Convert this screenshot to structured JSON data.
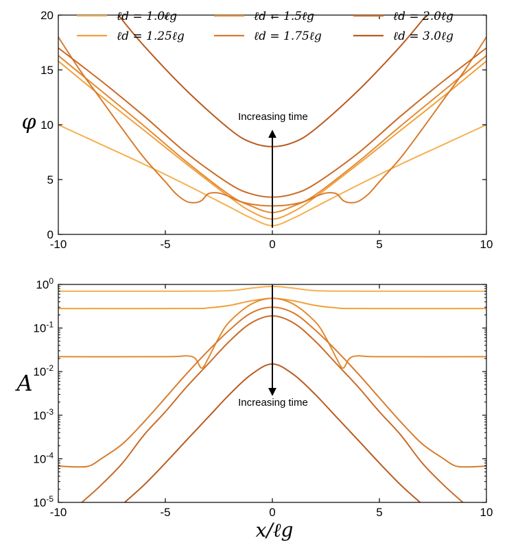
{
  "legend": {
    "entries": [
      {
        "label": "ℓd = 1.0ℓg",
        "color": "#f5b04f"
      },
      {
        "label": "ℓd = 1.25ℓg",
        "color": "#f0a03a"
      },
      {
        "label": "ℓd = 1.5ℓg",
        "color": "#e28a2f"
      },
      {
        "label": "ℓd = 1.75ℓg",
        "color": "#d77a2a"
      },
      {
        "label": "ℓd = 2.0ℓg",
        "color": "#c96a26"
      },
      {
        "label": "ℓd = 3.0ℓg",
        "color": "#b85a1e"
      }
    ]
  },
  "chart_data": [
    {
      "type": "line",
      "panel": "top",
      "ylabel": "φ",
      "xlabel": "",
      "xlim": [
        -10,
        10
      ],
      "ylim": [
        0,
        20
      ],
      "xticks": [
        -10,
        -5,
        0,
        5,
        10
      ],
      "xtick_labels": [
        "-10",
        "-5",
        "0",
        "5",
        "10"
      ],
      "yticks": [
        0,
        5,
        10,
        15,
        20
      ],
      "ytick_labels": [
        "0",
        "5",
        "10",
        "15",
        "20"
      ],
      "annotation": "Increasing time",
      "arrow": {
        "x": 0,
        "from": 0.6,
        "to": 9.4
      },
      "series": [
        {
          "name": "ℓd = 1.0ℓg",
          "color": "#f5b04f",
          "points": [
            [
              -10,
              10
            ],
            [
              -8,
              8.2
            ],
            [
              -6,
              6.4
            ],
            [
              -4,
              4.5
            ],
            [
              -2,
              2.5
            ],
            [
              -1,
              1.5
            ],
            [
              0,
              0.8
            ],
            [
              1,
              1.5
            ],
            [
              2,
              2.5
            ],
            [
              4,
              4.5
            ],
            [
              6,
              6.4
            ],
            [
              8,
              8.2
            ],
            [
              10,
              10
            ]
          ]
        },
        {
          "name": "ℓd = 1.25ℓg",
          "color": "#f0a03a",
          "points": [
            [
              -10,
              15.8
            ],
            [
              -8,
              12.6
            ],
            [
              -6,
              9.5
            ],
            [
              -4,
              6.4
            ],
            [
              -2,
              3.4
            ],
            [
              -1,
              2.1
            ],
            [
              0,
              1.4
            ],
            [
              1,
              2.1
            ],
            [
              2,
              3.4
            ],
            [
              4,
              6.4
            ],
            [
              6,
              9.5
            ],
            [
              8,
              12.6
            ],
            [
              10,
              15.8
            ]
          ]
        },
        {
          "name": "ℓd = 1.5ℓg",
          "color": "#e28a2f",
          "points": [
            [
              -10,
              16.3
            ],
            [
              -8,
              13.1
            ],
            [
              -6,
              9.9
            ],
            [
              -4,
              6.6
            ],
            [
              -2,
              3.6
            ],
            [
              -1,
              2.6
            ],
            [
              0,
              2.0
            ],
            [
              1,
              2.6
            ],
            [
              2,
              3.6
            ],
            [
              4,
              6.6
            ],
            [
              6,
              9.9
            ],
            [
              8,
              13.1
            ],
            [
              10,
              16.3
            ]
          ]
        },
        {
          "name": "ℓd = 1.75ℓg",
          "color": "#d77a2a",
          "points": [
            [
              -10,
              18
            ],
            [
              -9,
              15
            ],
            [
              -8,
              12.3
            ],
            [
              -7,
              9.6
            ],
            [
              -6,
              7
            ],
            [
              -5,
              4.8
            ],
            [
              -4.5,
              3.7
            ],
            [
              -4,
              3.0
            ],
            [
              -3.6,
              2.9
            ],
            [
              -3.3,
              3.1
            ],
            [
              -3,
              3.7
            ],
            [
              -2.6,
              3.8
            ],
            [
              -2.2,
              3.6
            ],
            [
              -1.5,
              3.0
            ],
            [
              -0.8,
              2.7
            ],
            [
              0,
              2.6
            ],
            [
              0.8,
              2.7
            ],
            [
              1.5,
              3.0
            ],
            [
              2.2,
              3.6
            ],
            [
              2.6,
              3.8
            ],
            [
              3,
              3.7
            ],
            [
              3.3,
              3.1
            ],
            [
              3.6,
              2.9
            ],
            [
              4,
              3.0
            ],
            [
              4.5,
              3.7
            ],
            [
              5,
              4.8
            ],
            [
              6,
              7
            ],
            [
              7,
              9.6
            ],
            [
              8,
              12.3
            ],
            [
              9,
              15
            ],
            [
              10,
              18
            ]
          ]
        },
        {
          "name": "ℓd = 2.0ℓg",
          "color": "#c96a26",
          "points": [
            [
              -10,
              17
            ],
            [
              -8,
              14
            ],
            [
              -6,
              10.8
            ],
            [
              -4,
              7.4
            ],
            [
              -2,
              4.6
            ],
            [
              -1,
              3.7
            ],
            [
              0,
              3.4
            ],
            [
              1,
              3.7
            ],
            [
              2,
              4.6
            ],
            [
              4,
              7.4
            ],
            [
              6,
              10.8
            ],
            [
              8,
              14
            ],
            [
              10,
              17
            ]
          ]
        },
        {
          "name": "ℓd = 3.0ℓg",
          "color": "#b85a1e",
          "points": [
            [
              -7.2,
              20
            ],
            [
              -6,
              17.2
            ],
            [
              -4,
              13.1
            ],
            [
              -2,
              9.6
            ],
            [
              -1,
              8.4
            ],
            [
              0,
              8.0
            ],
            [
              1,
              8.4
            ],
            [
              2,
              9.6
            ],
            [
              4,
              13.1
            ],
            [
              6,
              17.2
            ],
            [
              7.2,
              20
            ]
          ]
        }
      ]
    },
    {
      "type": "line",
      "panel": "bottom",
      "yscale": "log",
      "ylabel": "A",
      "xlabel": "x/ℓg",
      "xlim": [
        -10,
        10
      ],
      "ylim": [
        1e-05,
        1
      ],
      "xticks": [
        -10,
        -5,
        0,
        5,
        10
      ],
      "xtick_labels": [
        "-10",
        "-5",
        "0",
        "5",
        "10"
      ],
      "yticks": [
        1e-05,
        0.0001,
        0.001,
        0.01,
        0.1,
        1
      ],
      "ytick_labels": [
        {
          "base": "10",
          "exp": "-5"
        },
        {
          "base": "10",
          "exp": "-4"
        },
        {
          "base": "10",
          "exp": "-3"
        },
        {
          "base": "10",
          "exp": "-2"
        },
        {
          "base": "10",
          "exp": "-1"
        },
        {
          "base": "10",
          "exp": "0"
        }
      ],
      "annotation": "Increasing time",
      "arrow": {
        "x": 0,
        "from": 0.96,
        "to": 0.003
      },
      "series": [
        {
          "name": "ℓd = 1.0ℓg",
          "color": "#f5b04f",
          "points": [
            [
              -10,
              0.7
            ],
            [
              -4,
              0.7
            ],
            [
              -2,
              0.72
            ],
            [
              -1,
              0.82
            ],
            [
              0,
              0.9
            ],
            [
              1,
              0.82
            ],
            [
              2,
              0.72
            ],
            [
              4,
              0.7
            ],
            [
              10,
              0.7
            ]
          ]
        },
        {
          "name": "ℓd = 1.25ℓg",
          "color": "#f0a03a",
          "points": [
            [
              -10,
              0.28
            ],
            [
              -4,
              0.28
            ],
            [
              -3,
              0.29
            ],
            [
              -2,
              0.33
            ],
            [
              -1,
              0.42
            ],
            [
              0,
              0.48
            ],
            [
              1,
              0.42
            ],
            [
              2,
              0.33
            ],
            [
              3,
              0.29
            ],
            [
              4,
              0.28
            ],
            [
              10,
              0.28
            ]
          ]
        },
        {
          "name": "ℓd = 1.5ℓg",
          "color": "#e28a2f",
          "points": [
            [
              -10,
              0.022
            ],
            [
              -5,
              0.022
            ],
            [
              -4,
              0.023
            ],
            [
              -3.6,
              0.02
            ],
            [
              -3.3,
              0.012
            ],
            [
              -3,
              0.02
            ],
            [
              -2.5,
              0.06
            ],
            [
              -2,
              0.14
            ],
            [
              -1,
              0.35
            ],
            [
              0,
              0.48
            ],
            [
              1,
              0.35
            ],
            [
              2,
              0.14
            ],
            [
              2.5,
              0.06
            ],
            [
              3,
              0.02
            ],
            [
              3.3,
              0.012
            ],
            [
              3.6,
              0.02
            ],
            [
              4,
              0.023
            ],
            [
              5,
              0.022
            ],
            [
              10,
              0.022
            ]
          ]
        },
        {
          "name": "ℓd = 1.75ℓg",
          "color": "#d77a2a",
          "points": [
            [
              -10,
              6.8e-05
            ],
            [
              -9,
              6.5e-05
            ],
            [
              -8.5,
              7e-05
            ],
            [
              -8,
              0.0001
            ],
            [
              -7,
              0.00022
            ],
            [
              -6,
              0.0007
            ],
            [
              -5,
              0.0025
            ],
            [
              -4,
              0.009
            ],
            [
              -3,
              0.03
            ],
            [
              -2,
              0.09
            ],
            [
              -1,
              0.22
            ],
            [
              0,
              0.3
            ],
            [
              1,
              0.22
            ],
            [
              2,
              0.09
            ],
            [
              3,
              0.03
            ],
            [
              4,
              0.009
            ],
            [
              5,
              0.0025
            ],
            [
              6,
              0.0007
            ],
            [
              7,
              0.00022
            ],
            [
              8,
              0.0001
            ],
            [
              8.5,
              7e-05
            ],
            [
              9,
              6.5e-05
            ],
            [
              10,
              6.8e-05
            ]
          ]
        },
        {
          "name": "ℓd = 2.0ℓg",
          "color": "#c96a26",
          "points": [
            [
              -8.9,
              1e-05
            ],
            [
              -8,
              2.5e-05
            ],
            [
              -7,
              8e-05
            ],
            [
              -6,
              0.00035
            ],
            [
              -5,
              0.0012
            ],
            [
              -4,
              0.0045
            ],
            [
              -3,
              0.015
            ],
            [
              -2,
              0.05
            ],
            [
              -1,
              0.13
            ],
            [
              0,
              0.19
            ],
            [
              1,
              0.13
            ],
            [
              2,
              0.05
            ],
            [
              3,
              0.015
            ],
            [
              4,
              0.0045
            ],
            [
              5,
              0.0012
            ],
            [
              6,
              0.00035
            ],
            [
              7,
              8e-05
            ],
            [
              8,
              2.5e-05
            ],
            [
              8.9,
              1e-05
            ]
          ]
        },
        {
          "name": "ℓd = 3.0ℓg",
          "color": "#b85a1e",
          "points": [
            [
              -6.9,
              1e-05
            ],
            [
              -6,
              2.5e-05
            ],
            [
              -5,
              8e-05
            ],
            [
              -4,
              0.00027
            ],
            [
              -3,
              0.0009
            ],
            [
              -2,
              0.003
            ],
            [
              -1,
              0.0085
            ],
            [
              0,
              0.015
            ],
            [
              1,
              0.0085
            ],
            [
              2,
              0.003
            ],
            [
              3,
              0.0009
            ],
            [
              4,
              0.00027
            ],
            [
              5,
              8e-05
            ],
            [
              6,
              2.5e-05
            ],
            [
              6.9,
              1e-05
            ]
          ]
        }
      ]
    }
  ]
}
